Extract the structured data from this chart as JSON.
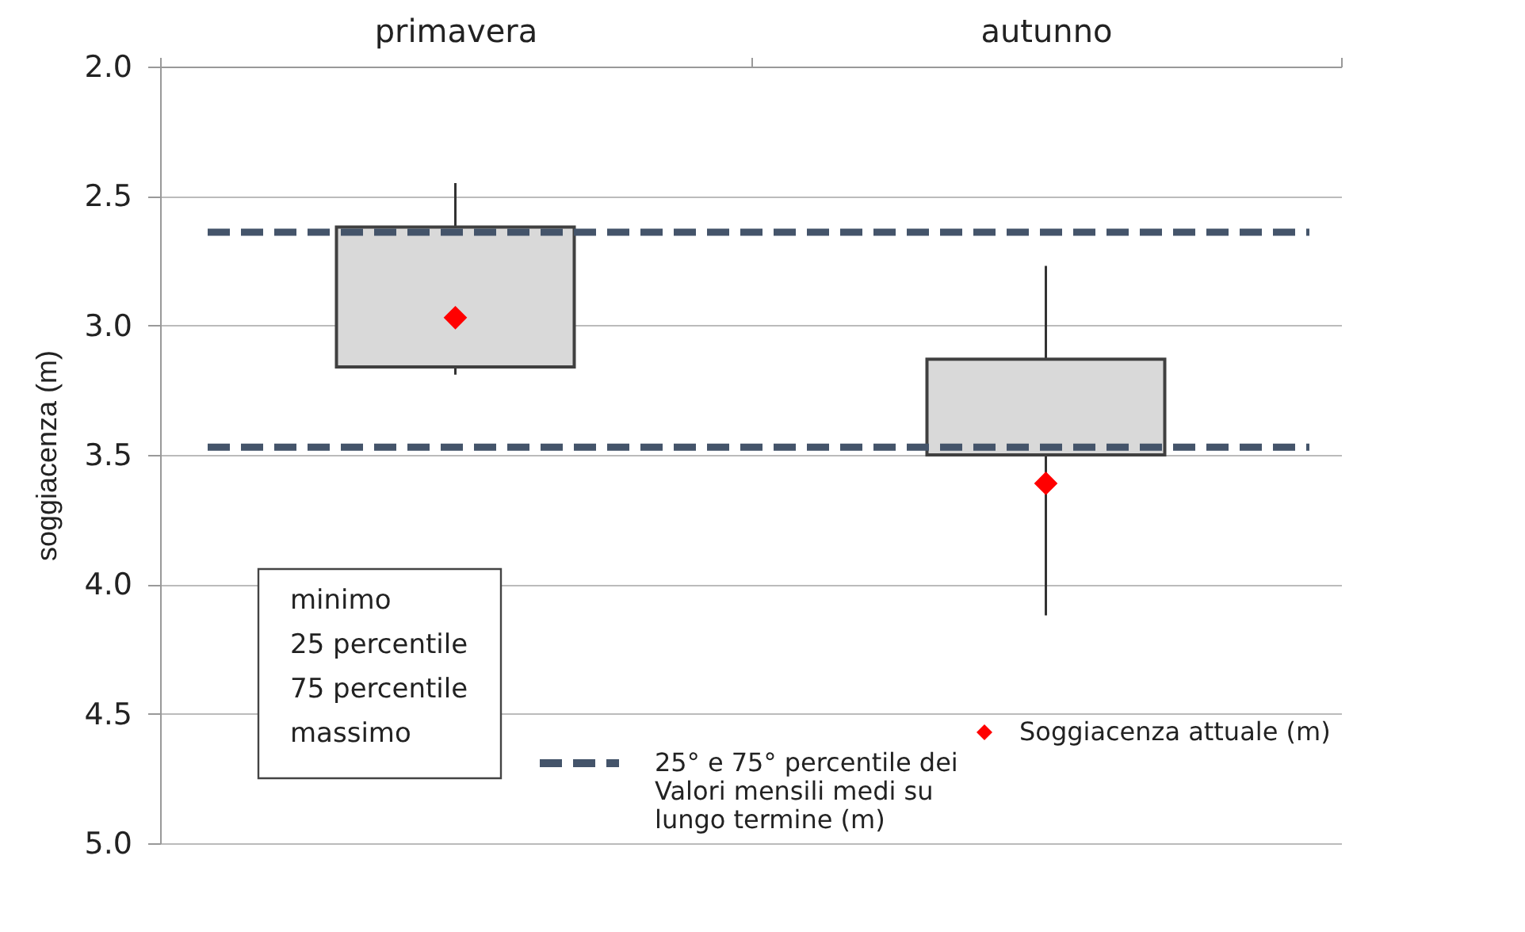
{
  "chart_data": {
    "type": "box",
    "categories": [
      "primavera",
      "autunno"
    ],
    "ylabel": "soggiacenza (m)",
    "ylim": [
      5.0,
      2.0
    ],
    "yticks": [
      {
        "value": 2.0,
        "label": "2.0"
      },
      {
        "value": 2.5,
        "label": "2.5"
      },
      {
        "value": 3.0,
        "label": "3.0"
      },
      {
        "value": 3.5,
        "label": "3.5"
      },
      {
        "value": 4.0,
        "label": "4.0"
      },
      {
        "value": 4.5,
        "label": "4.5"
      },
      {
        "value": 5.0,
        "label": "5.0"
      }
    ],
    "grid": "y",
    "legend": "bottom right",
    "series": [
      {
        "color": "#d9d9d9",
        "boxes": [
          {
            "low": 2.45,
            "q1": 2.62,
            "q3": 3.16,
            "high": 3.19
          },
          {
            "low": 2.77,
            "q1": 3.13,
            "q3": 3.5,
            "high": 4.12
          }
        ]
      },
      {
        "type": "scatter",
        "name": "Soggiacenza attuale (m)",
        "color": "#ff0000",
        "marker": "diamond",
        "x": [
          "primavera",
          "autunno"
        ],
        "values": [
          2.97,
          3.61
        ]
      }
    ],
    "ref_lines": [
      {
        "axis": "y",
        "value": 2.64,
        "label": "25° e 75° percentile dei Valori mensili medi su lungo termine (m)",
        "color": "#44546a",
        "line_style": "dashed"
      },
      {
        "axis": "y",
        "value": 3.47,
        "color": "#44546a",
        "line_style": "dashed"
      }
    ],
    "annotations": [
      "minimo",
      "25 percentile",
      "75 percentile",
      "massimo"
    ]
  }
}
